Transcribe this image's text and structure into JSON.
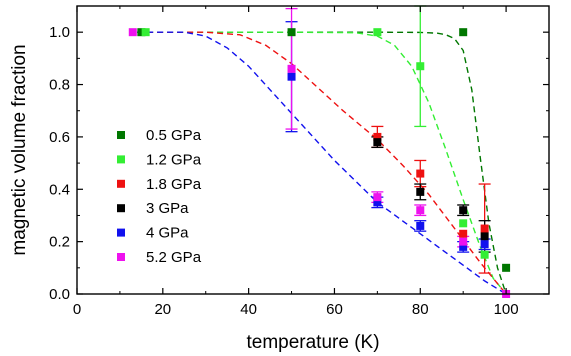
{
  "chart_data": {
    "type": "scatter",
    "xlabel": "temperature (K)",
    "ylabel": "magnetic volume fraction",
    "xlim": [
      0,
      110
    ],
    "ylim": [
      0,
      1.1
    ],
    "x_ticks": [
      0,
      20,
      40,
      60,
      80,
      100
    ],
    "y_ticks": [
      0.0,
      0.2,
      0.4,
      0.6,
      0.8,
      1.0
    ],
    "x_tick_labels": [
      "0",
      "20",
      "40",
      "60",
      "80",
      "100"
    ],
    "y_tick_labels": [
      "0.0",
      "0.2",
      "0.4",
      "0.6",
      "0.8",
      "1.0"
    ],
    "grid": false,
    "legend_position": "left",
    "series": [
      {
        "name": "0.5 GPa",
        "color": "#007700",
        "points": [
          {
            "x": 15,
            "y": 1.0,
            "err": 0
          },
          {
            "x": 50,
            "y": 1.0,
            "err": 0
          },
          {
            "x": 90,
            "y": 1.0,
            "err": 0
          },
          {
            "x": 100,
            "y": 0.1,
            "err": 0
          }
        ],
        "fit": [
          [
            14,
            1.0
          ],
          [
            30,
            1.0
          ],
          [
            50,
            1.0
          ],
          [
            70,
            1.0
          ],
          [
            80,
            0.999
          ],
          [
            84,
            0.996
          ],
          [
            86,
            0.99
          ],
          [
            88,
            0.975
          ],
          [
            90,
            0.93
          ],
          [
            92,
            0.78
          ],
          [
            94,
            0.52
          ],
          [
            96,
            0.27
          ],
          [
            98,
            0.1
          ],
          [
            100,
            0.0
          ]
        ]
      },
      {
        "name": "1.2 GPa",
        "color": "#33ee33",
        "points": [
          {
            "x": 16,
            "y": 1.0,
            "err": 0
          },
          {
            "x": 70,
            "y": 1.0,
            "err": 0
          },
          {
            "x": 80,
            "y": 0.87,
            "err": 0.23
          },
          {
            "x": 90,
            "y": 0.27,
            "err": 0
          },
          {
            "x": 95,
            "y": 0.15,
            "err": 0
          }
        ],
        "fit": [
          [
            14,
            1.0
          ],
          [
            50,
            1.0
          ],
          [
            65,
            0.998
          ],
          [
            70,
            0.985
          ],
          [
            74,
            0.95
          ],
          [
            78,
            0.87
          ],
          [
            82,
            0.73
          ],
          [
            86,
            0.55
          ],
          [
            90,
            0.36
          ],
          [
            94,
            0.18
          ],
          [
            97,
            0.06
          ],
          [
            100,
            0.0
          ]
        ]
      },
      {
        "name": "1.8 GPa",
        "color": "#ee1111",
        "points": [
          {
            "x": 70,
            "y": 0.6,
            "err": 0.04
          },
          {
            "x": 80,
            "y": 0.46,
            "err": 0.05
          },
          {
            "x": 90,
            "y": 0.23,
            "err": 0
          },
          {
            "x": 95,
            "y": 0.25,
            "err": 0.17
          }
        ],
        "fit": [
          [
            14,
            1.0
          ],
          [
            30,
            1.0
          ],
          [
            38,
            0.99
          ],
          [
            44,
            0.95
          ],
          [
            50,
            0.88
          ],
          [
            56,
            0.79
          ],
          [
            62,
            0.7
          ],
          [
            70,
            0.59
          ],
          [
            76,
            0.49
          ],
          [
            82,
            0.38
          ],
          [
            88,
            0.25
          ],
          [
            94,
            0.12
          ],
          [
            100,
            0.0
          ]
        ]
      },
      {
        "name": "3 GPa",
        "color": "#000000",
        "points": [
          {
            "x": 70,
            "y": 0.58,
            "err": 0.02
          },
          {
            "x": 80,
            "y": 0.39,
            "err": 0.03
          },
          {
            "x": 90,
            "y": 0.32,
            "err": 0.02
          },
          {
            "x": 95,
            "y": 0.22,
            "err": 0.06
          }
        ],
        "fit": []
      },
      {
        "name": "4 GPa",
        "color": "#1111ee",
        "points": [
          {
            "x": 50,
            "y": 0.83,
            "err": 0.21
          },
          {
            "x": 70,
            "y": 0.35,
            "err": 0.02
          },
          {
            "x": 80,
            "y": 0.26,
            "err": 0.02
          },
          {
            "x": 90,
            "y": 0.18,
            "err": 0.02
          },
          {
            "x": 95,
            "y": 0.19,
            "err": 0.02
          }
        ],
        "fit": [
          [
            14,
            1.0
          ],
          [
            25,
            1.0
          ],
          [
            30,
            0.985
          ],
          [
            35,
            0.94
          ],
          [
            40,
            0.87
          ],
          [
            45,
            0.78
          ],
          [
            50,
            0.69
          ],
          [
            55,
            0.6
          ],
          [
            60,
            0.51
          ],
          [
            65,
            0.43
          ],
          [
            70,
            0.35
          ],
          [
            75,
            0.29
          ],
          [
            80,
            0.23
          ],
          [
            85,
            0.17
          ],
          [
            90,
            0.11
          ],
          [
            95,
            0.05
          ],
          [
            100,
            0.0
          ]
        ]
      },
      {
        "name": "5.2 GPa",
        "color": "#ee11ee",
        "points": [
          {
            "x": 13,
            "y": 1.0,
            "err": 0
          },
          {
            "x": 50,
            "y": 0.86,
            "err": 0.23
          },
          {
            "x": 70,
            "y": 0.37,
            "err": 0.02
          },
          {
            "x": 80,
            "y": 0.32,
            "err": 0.02
          },
          {
            "x": 90,
            "y": 0.2,
            "err": 0.02
          },
          {
            "x": 100,
            "y": 0.0,
            "err": 0
          }
        ],
        "fit": []
      }
    ]
  }
}
